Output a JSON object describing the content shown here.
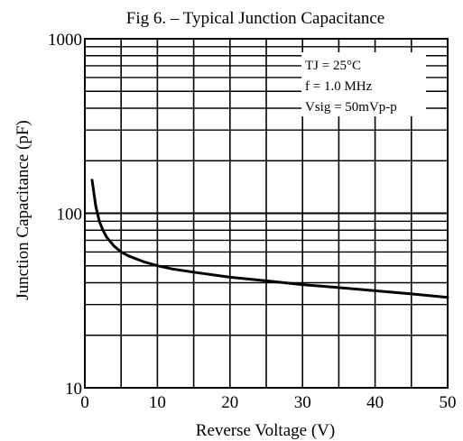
{
  "chart_data": {
    "type": "line",
    "title": "Fig 6.  –  Typical Junction Capacitance",
    "xlabel": "Reverse Voltage (V)",
    "ylabel": "Junction Capacitance (pF)",
    "xlim": [
      0,
      50
    ],
    "ylim": [
      10,
      1000
    ],
    "yscale": "log",
    "grid": true,
    "x_ticks": [
      0,
      10,
      20,
      30,
      40,
      50
    ],
    "x_tick_labels": [
      "0",
      "10",
      "20",
      "30",
      "40",
      "50"
    ],
    "y_ticks": [
      10,
      100,
      1000
    ],
    "y_tick_labels": [
      "10",
      "100",
      "1000"
    ],
    "annotations": [
      "TJ = 25°C",
      "f = 1.0 MHz",
      "Vsig = 50mVp-p"
    ],
    "series": [
      {
        "x": [
          1,
          1.5,
          2,
          2.5,
          3,
          4,
          5,
          6,
          8,
          10,
          12,
          15,
          20,
          25,
          30,
          35,
          40,
          45,
          50
        ],
        "y": [
          155,
          110,
          90,
          80,
          73,
          65,
          60,
          57,
          53,
          50,
          48,
          46,
          43,
          41,
          39,
          37.5,
          36,
          34.5,
          33
        ]
      }
    ],
    "line_color": "#000000"
  }
}
